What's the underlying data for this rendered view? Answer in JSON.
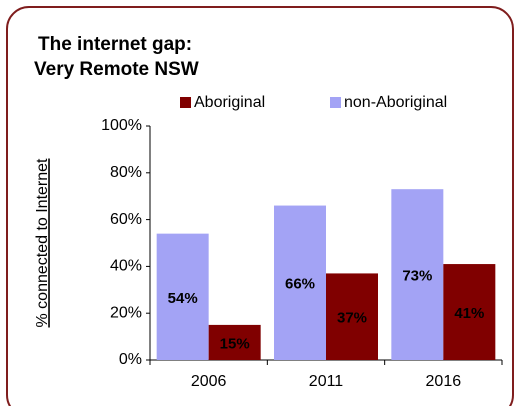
{
  "chart_data": {
    "type": "bar",
    "title": [
      "The internet gap:",
      "Very Remote NSW"
    ],
    "y_label": "% connected to Internet",
    "categories": [
      "2006",
      "2011",
      "2016"
    ],
    "series": [
      {
        "name": "non-Aboriginal",
        "color": "#a3a3f5",
        "values": [
          54,
          66,
          73
        ],
        "value_labels": [
          "54%",
          "66%",
          "73%"
        ]
      },
      {
        "name": "Aboriginal",
        "color": "#800000",
        "values": [
          15,
          37,
          41
        ],
        "value_labels": [
          "15%",
          "37%",
          "41%"
        ]
      }
    ],
    "ylim": [
      0,
      100
    ],
    "yticks": [
      {
        "value": 0,
        "label": "0%"
      },
      {
        "value": 20,
        "label": "20%"
      },
      {
        "value": 40,
        "label": "40%"
      },
      {
        "value": 60,
        "label": "60%"
      },
      {
        "value": 80,
        "label": "80%"
      },
      {
        "value": 100,
        "label": "100%"
      }
    ],
    "grid": false
  }
}
